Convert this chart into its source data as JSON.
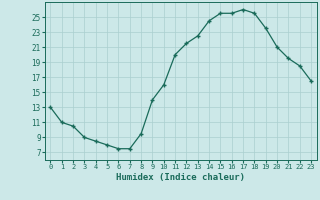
{
  "x": [
    0,
    1,
    2,
    3,
    4,
    5,
    6,
    7,
    8,
    9,
    10,
    11,
    12,
    13,
    14,
    15,
    16,
    17,
    18,
    19,
    20,
    21,
    22,
    23
  ],
  "y": [
    13,
    11,
    10.5,
    9,
    8.5,
    8,
    7.5,
    7.5,
    9.5,
    14,
    16,
    20,
    21.5,
    22.5,
    24.5,
    25.5,
    25.5,
    26,
    25.5,
    23.5,
    21,
    19.5,
    18.5,
    16.5
  ],
  "title": "",
  "xlabel": "Humidex (Indice chaleur)",
  "xlim": [
    -0.5,
    23.5
  ],
  "ylim": [
    6,
    27
  ],
  "yticks": [
    7,
    9,
    11,
    13,
    15,
    17,
    19,
    21,
    23,
    25
  ],
  "line_color": "#1a6b5a",
  "bg_color": "#cce8e8",
  "grid_color": "#aacfcf"
}
